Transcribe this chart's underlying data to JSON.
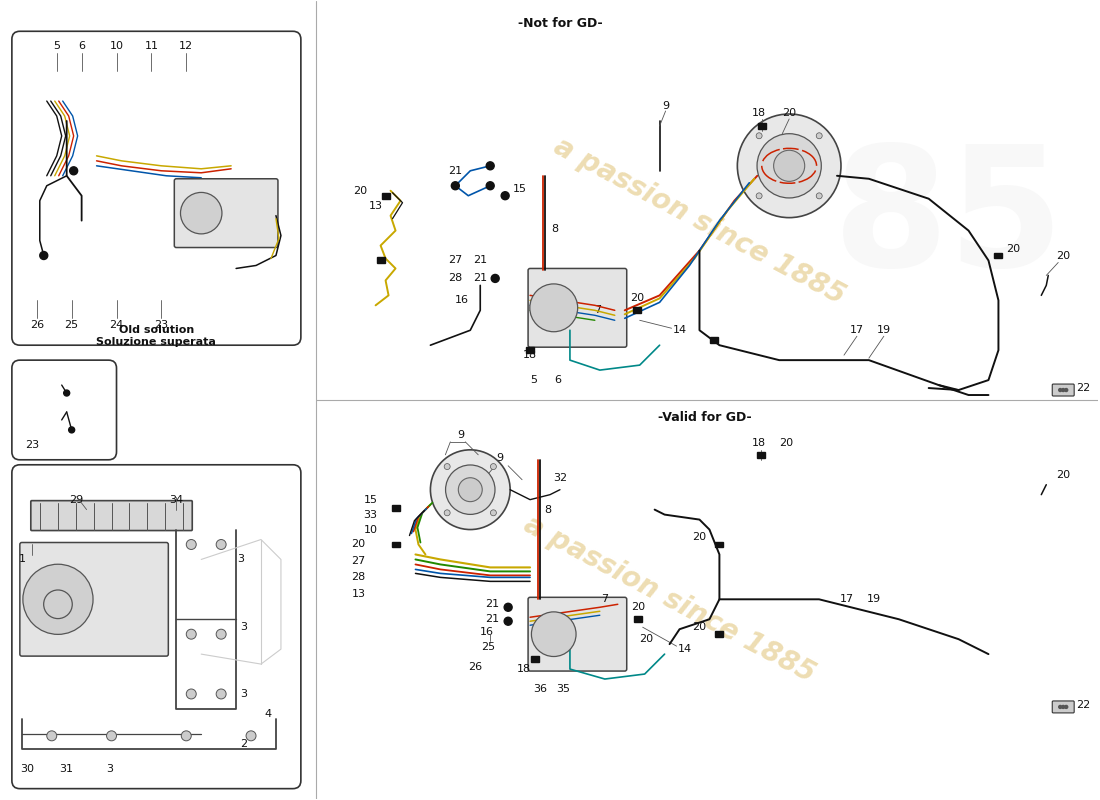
{
  "bg_color": "#ffffff",
  "watermark_color": "#d4aa40",
  "watermark_alpha": 0.4,
  "line_yellow": "#c8a800",
  "line_red": "#cc2200",
  "line_blue": "#0055aa",
  "line_black": "#111111",
  "line_green": "#228800",
  "line_cyan": "#008888",
  "font_size": 8,
  "font_size_head": 9,
  "not_for_gd_label": "-Not for GD-",
  "valid_for_gd_label": "-Valid for GD-",
  "old_solution_it": "Soluzione superata",
  "old_solution_en": "Old solution"
}
